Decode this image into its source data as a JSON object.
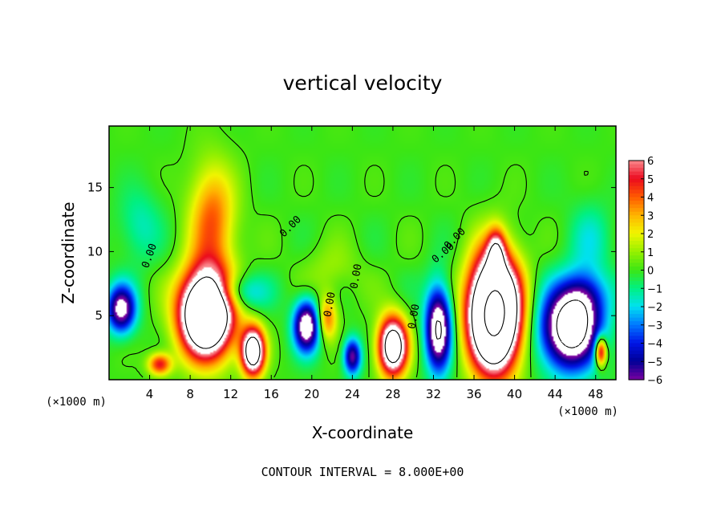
{
  "chart_data": {
    "type": "heatmap",
    "title": "vertical velocity",
    "xlabel": "X-coordinate",
    "ylabel": "Z-coordinate",
    "x_units": "(×1000 m)",
    "z_units": "(×1000 m)",
    "xlim": [
      0,
      50
    ],
    "ylim": [
      0,
      19.8
    ],
    "x_ticks": [
      "4",
      "8",
      "12",
      "16",
      "20",
      "24",
      "28",
      "32",
      "36",
      "40",
      "44",
      "48"
    ],
    "y_ticks": [
      "5",
      "10",
      "15"
    ],
    "colorbar": {
      "range": [
        -6,
        6
      ],
      "ticks": [
        "6",
        "5",
        "4",
        "3",
        "2",
        "1",
        "0",
        "−1",
        "−2",
        "−3",
        "−4",
        "−5",
        "−6"
      ]
    },
    "contour_labels": [
      "0.00",
      "0.00",
      "0.00",
      "0.00",
      "0.00",
      "0.00",
      "0.00"
    ],
    "footer": "CONTOUR INTERVAL = 8.000E+00",
    "features": [
      {
        "x": 1.2,
        "z": 5.5,
        "amp": -7.0,
        "sx": 1.0,
        "sz": 1.3
      },
      {
        "x": 5.0,
        "z": 1.2,
        "amp": 5.0,
        "sx": 0.8,
        "sz": 0.6
      },
      {
        "x": 9.6,
        "z": 5.2,
        "amp": 16.0,
        "sx": 1.8,
        "sz": 2.3
      },
      {
        "x": 10.2,
        "z": 12.5,
        "amp": 4.0,
        "sx": 1.6,
        "sz": 3.0
      },
      {
        "x": 14.2,
        "z": 2.2,
        "amp": 11.0,
        "sx": 0.8,
        "sz": 1.3
      },
      {
        "x": 12.5,
        "z": 6.8,
        "amp": -3.0,
        "sx": 2.0,
        "sz": 1.0
      },
      {
        "x": 19.5,
        "z": 4.2,
        "amp": -8.0,
        "sx": 0.9,
        "sz": 1.4
      },
      {
        "x": 21.5,
        "z": 4.8,
        "amp": 4.0,
        "sx": 0.7,
        "sz": 1.2
      },
      {
        "x": 24.0,
        "z": 1.8,
        "amp": -6.0,
        "sx": 0.6,
        "sz": 1.0
      },
      {
        "x": 28.0,
        "z": 2.6,
        "amp": 11.0,
        "sx": 1.0,
        "sz": 1.6
      },
      {
        "x": 32.5,
        "z": 4.0,
        "amp": -8.5,
        "sx": 0.9,
        "sz": 2.3
      },
      {
        "x": 38.0,
        "z": 5.2,
        "amp": 19.0,
        "sx": 1.7,
        "sz": 3.0
      },
      {
        "x": 38.2,
        "z": 10.0,
        "amp": 5.0,
        "sx": 0.6,
        "sz": 1.2
      },
      {
        "x": 45.5,
        "z": 4.0,
        "amp": -10.0,
        "sx": 2.0,
        "sz": 2.2
      },
      {
        "x": 47.0,
        "z": 6.5,
        "amp": -3.0,
        "sx": 1.5,
        "sz": 1.5
      },
      {
        "x": 48.5,
        "z": 2.2,
        "amp": 7.0,
        "sx": 0.4,
        "sz": 0.8
      },
      {
        "x": 3.0,
        "z": 12.0,
        "amp": -1.5,
        "sx": 1.5,
        "sz": 2.0
      },
      {
        "x": 47.5,
        "z": 11.0,
        "amp": -1.5,
        "sx": 1.5,
        "sz": 2.0
      },
      {
        "x": 22.0,
        "z": 8.5,
        "amp": 1.0,
        "sx": 2.0,
        "sz": 1.5
      }
    ],
    "grid": false,
    "legend": "colorbar-right"
  }
}
